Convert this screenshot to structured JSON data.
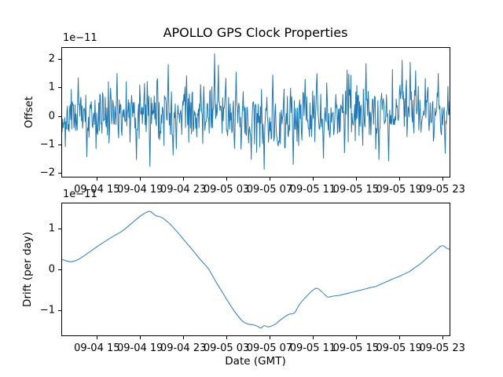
{
  "figure": {
    "title": "APOLLO GPS Clock Properties",
    "background": "#ffffff",
    "line_color": "#1f77b4"
  },
  "chart_data": [
    {
      "id": "offset",
      "type": "line",
      "title": "APOLLO GPS Clock Properties",
      "ylabel": "Offset",
      "y_scale_label": "1e−11",
      "line_color": "#1f77b4",
      "grid": false,
      "legend": "none",
      "xlim_hours": [
        11.7,
        47.75
      ],
      "ylim": [
        -2.16,
        2.41
      ],
      "yticks": [
        2,
        1,
        0,
        -1,
        -2
      ],
      "xticks": [
        {
          "t": 15,
          "label": "09-04 15"
        },
        {
          "t": 19,
          "label": "09-04 19"
        },
        {
          "t": 23,
          "label": "09-04 23"
        },
        {
          "t": 27,
          "label": "09-05 03"
        },
        {
          "t": 31,
          "label": "09-05 07"
        },
        {
          "t": 35,
          "label": "09-05 11"
        },
        {
          "t": 39,
          "label": "09-05 15"
        },
        {
          "t": 43,
          "label": "09-05 19"
        },
        {
          "t": 47,
          "label": "09-05 23"
        }
      ],
      "series_spec": {
        "kind": "gaussian-noise",
        "n": 720,
        "seed": 11,
        "sigma": 0.5,
        "clip": [
          -1.92,
          2.2
        ],
        "mean_wander": [
          [
            11.7,
            0.0
          ],
          [
            14,
            0.05
          ],
          [
            17,
            0.1
          ],
          [
            20,
            0.08
          ],
          [
            23,
            0.0
          ],
          [
            25,
            0.12
          ],
          [
            26.5,
            0.05
          ],
          [
            29,
            -0.3
          ],
          [
            31,
            -0.28
          ],
          [
            33,
            -0.08
          ],
          [
            35,
            -0.05
          ],
          [
            37,
            0.0
          ],
          [
            39,
            0.05
          ],
          [
            41,
            0.1
          ],
          [
            42.5,
            0.25
          ],
          [
            43.8,
            0.4
          ],
          [
            45,
            0.2
          ],
          [
            46.5,
            0.15
          ],
          [
            47.75,
            0.05
          ]
        ],
        "spikes": [
          [
            13.2,
            1.35
          ],
          [
            14.0,
            -1.45
          ],
          [
            16.8,
            1.5
          ],
          [
            18.6,
            -1.55
          ],
          [
            19.85,
            -1.8
          ],
          [
            21.6,
            1.82
          ],
          [
            23.3,
            1.42
          ],
          [
            25.9,
            2.2
          ],
          [
            26.25,
            1.8
          ],
          [
            27.9,
            1.55
          ],
          [
            29.3,
            -1.55
          ],
          [
            30.5,
            -1.9
          ],
          [
            31.3,
            1.45
          ],
          [
            33.2,
            -1.72
          ],
          [
            34.3,
            1.3
          ],
          [
            36.0,
            -1.5
          ],
          [
            38.2,
            1.62
          ],
          [
            40.0,
            1.85
          ],
          [
            41.2,
            -1.55
          ],
          [
            42.1,
            -1.6
          ],
          [
            43.35,
            1.97
          ],
          [
            44.1,
            1.9
          ],
          [
            44.6,
            1.6
          ],
          [
            46.7,
            1.5
          ]
        ]
      }
    },
    {
      "id": "drift",
      "type": "line",
      "ylabel": "Drift (per day)",
      "xlabel": "Date (GMT)",
      "y_scale_label": "1e−11",
      "line_color": "#3d85c0",
      "grid": false,
      "legend": "none",
      "xlim_hours": [
        11.7,
        47.75
      ],
      "ylim": [
        -1.63,
        1.63
      ],
      "yticks": [
        1,
        0,
        -1
      ],
      "xticks": [
        {
          "t": 15,
          "label": "09-04 15"
        },
        {
          "t": 19,
          "label": "09-04 19"
        },
        {
          "t": 23,
          "label": "09-04 23"
        },
        {
          "t": 27,
          "label": "09-05 03"
        },
        {
          "t": 31,
          "label": "09-05 07"
        },
        {
          "t": 35,
          "label": "09-05 11"
        },
        {
          "t": 39,
          "label": "09-05 15"
        },
        {
          "t": 43,
          "label": "09-05 19"
        },
        {
          "t": 47,
          "label": "09-05 23"
        }
      ],
      "points": [
        [
          11.7,
          0.25
        ],
        [
          12.1,
          0.21
        ],
        [
          12.6,
          0.19
        ],
        [
          13.3,
          0.26
        ],
        [
          14.2,
          0.42
        ],
        [
          15.0,
          0.57
        ],
        [
          15.8,
          0.71
        ],
        [
          16.6,
          0.84
        ],
        [
          17.3,
          0.95
        ],
        [
          18.0,
          1.1
        ],
        [
          18.8,
          1.28
        ],
        [
          19.4,
          1.39
        ],
        [
          19.9,
          1.43
        ],
        [
          20.4,
          1.33
        ],
        [
          21.0,
          1.28
        ],
        [
          21.7,
          1.13
        ],
        [
          22.4,
          0.93
        ],
        [
          23.0,
          0.74
        ],
        [
          23.9,
          0.46
        ],
        [
          24.6,
          0.23
        ],
        [
          25.3,
          0.02
        ],
        [
          26.0,
          -0.3
        ],
        [
          26.6,
          -0.56
        ],
        [
          27.2,
          -0.82
        ],
        [
          27.8,
          -1.06
        ],
        [
          28.5,
          -1.28
        ],
        [
          29.0,
          -1.35
        ],
        [
          29.5,
          -1.37
        ],
        [
          29.9,
          -1.41
        ],
        [
          30.2,
          -1.45
        ],
        [
          30.5,
          -1.39
        ],
        [
          30.9,
          -1.42
        ],
        [
          31.5,
          -1.36
        ],
        [
          32.1,
          -1.23
        ],
        [
          32.8,
          -1.11
        ],
        [
          33.3,
          -1.08
        ],
        [
          33.8,
          -0.86
        ],
        [
          34.6,
          -0.62
        ],
        [
          35.1,
          -0.5
        ],
        [
          35.45,
          -0.47
        ],
        [
          35.9,
          -0.56
        ],
        [
          36.4,
          -0.68
        ],
        [
          36.9,
          -0.66
        ],
        [
          37.5,
          -0.64
        ],
        [
          38.0,
          -0.61
        ],
        [
          38.6,
          -0.57
        ],
        [
          39.2,
          -0.53
        ],
        [
          39.8,
          -0.49
        ],
        [
          40.4,
          -0.45
        ],
        [
          40.9,
          -0.42
        ],
        [
          41.4,
          -0.36
        ],
        [
          42.0,
          -0.29
        ],
        [
          42.6,
          -0.22
        ],
        [
          43.0,
          -0.18
        ],
        [
          43.5,
          -0.12
        ],
        [
          44.1,
          -0.04
        ],
        [
          44.6,
          0.06
        ],
        [
          45.0,
          0.13
        ],
        [
          45.4,
          0.22
        ],
        [
          46.0,
          0.36
        ],
        [
          46.5,
          0.47
        ],
        [
          46.9,
          0.57
        ],
        [
          47.2,
          0.58
        ],
        [
          47.5,
          0.52
        ],
        [
          47.75,
          0.5
        ]
      ]
    }
  ]
}
